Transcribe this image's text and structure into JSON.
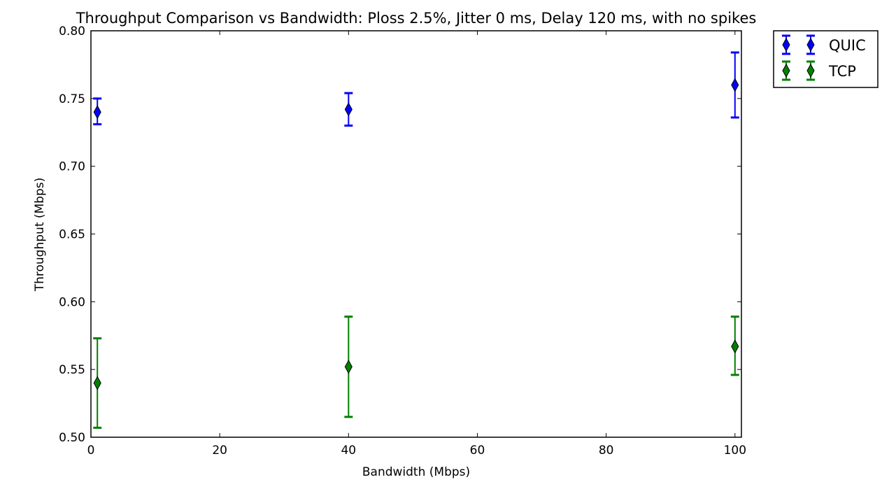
{
  "chart_data": {
    "type": "scatter",
    "title": "Throughput Comparison vs Bandwidth: Ploss 2.5%, Jitter 0 ms, Delay 120 ms, with no spikes",
    "xlabel": "Bandwidth (Mbps)",
    "ylabel": "Throughput (Mbps)",
    "xlim": [
      0,
      101
    ],
    "ylim": [
      0.5,
      0.8
    ],
    "xticks": [
      "0",
      "20",
      "40",
      "60",
      "80",
      "100"
    ],
    "yticks": [
      "0.50",
      "0.55",
      "0.60",
      "0.65",
      "0.70",
      "0.75",
      "0.80"
    ],
    "grid": false,
    "legend_position": "outside-top-right",
    "marker": "diamond",
    "series": [
      {
        "name": "QUIC",
        "color": "#0000ff",
        "points": [
          {
            "x": 1,
            "y": 0.74,
            "yerr_low": 0.731,
            "yerr_high": 0.75
          },
          {
            "x": 40,
            "y": 0.742,
            "yerr_low": 0.73,
            "yerr_high": 0.754
          },
          {
            "x": 100,
            "y": 0.76,
            "yerr_low": 0.736,
            "yerr_high": 0.784
          }
        ]
      },
      {
        "name": "TCP",
        "color": "#008000",
        "points": [
          {
            "x": 1,
            "y": 0.54,
            "yerr_low": 0.507,
            "yerr_high": 0.573
          },
          {
            "x": 40,
            "y": 0.552,
            "yerr_low": 0.515,
            "yerr_high": 0.589
          },
          {
            "x": 100,
            "y": 0.567,
            "yerr_low": 0.546,
            "yerr_high": 0.589
          }
        ]
      }
    ]
  }
}
